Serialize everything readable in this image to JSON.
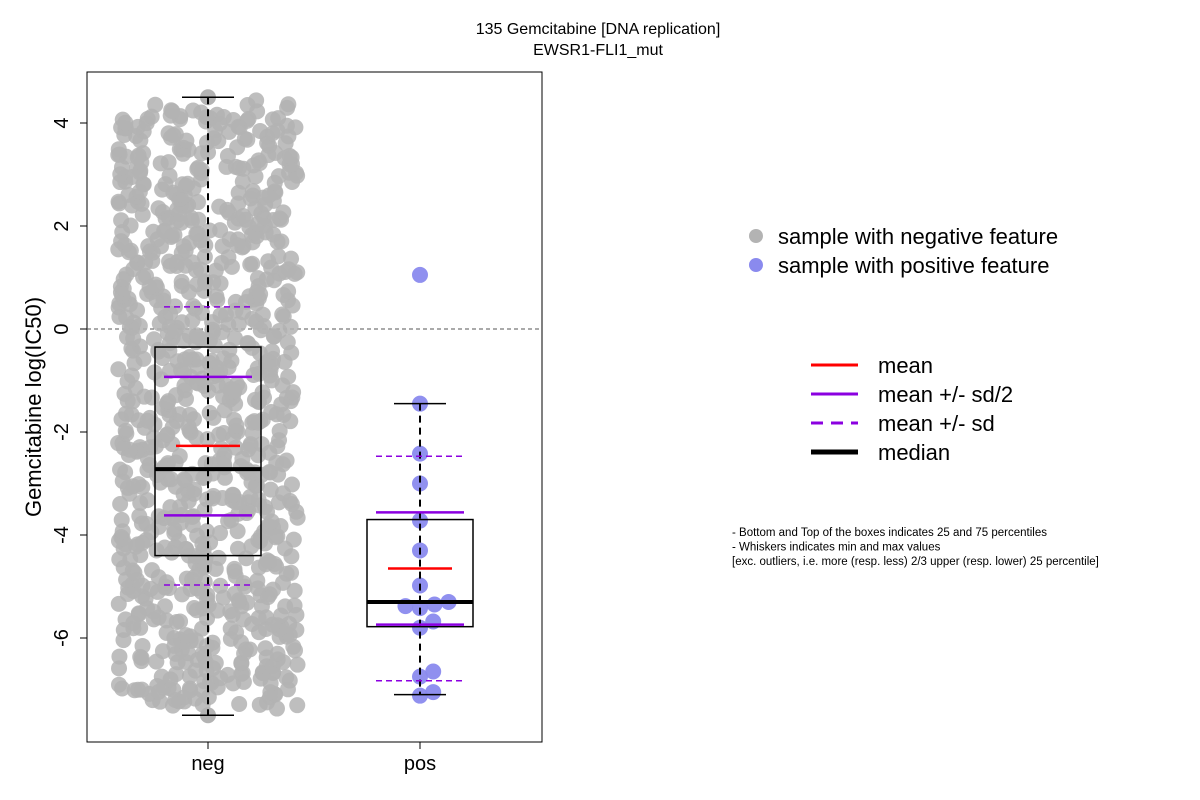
{
  "chart_data": {
    "type": "box+strip",
    "title": "135 Gemcitabine [DNA replication]",
    "subtitle": "EWSR1-FLI1_mut",
    "xlabel": "",
    "ylabel": "Gemcitabine log(IC50)",
    "categories": [
      "neg",
      "pos"
    ],
    "ylim": [
      -8,
      5
    ],
    "yticks": [
      4,
      2,
      0,
      -2,
      -4,
      -6
    ],
    "reference_line": {
      "y": 0,
      "style": "dashed"
    },
    "groups": [
      {
        "name": "neg",
        "color": "#b3b3b3",
        "count_estimate": 900,
        "min": -7.5,
        "q1": -4.4,
        "median": -2.72,
        "q3": -0.35,
        "max": 4.5,
        "mean": -2.27,
        "sd_half_low": -3.62,
        "sd_half_high": -0.93,
        "sd_low": -4.97,
        "sd_high": 0.43
      },
      {
        "name": "pos",
        "color": "#8a8aee",
        "min": -7.1,
        "q1": -5.78,
        "median": -5.3,
        "q3": -3.7,
        "max": -1.45,
        "mean": -4.65,
        "sd_half_low": -5.74,
        "sd_half_high": -3.56,
        "sd_low": -6.83,
        "sd_high": -2.47,
        "points": [
          {
            "x": 0.0,
            "y": 1.05
          },
          {
            "x": 0.0,
            "y": -1.45
          },
          {
            "x": 0.0,
            "y": -2.42
          },
          {
            "x": 0.0,
            "y": -3.0
          },
          {
            "x": 0.0,
            "y": -3.72
          },
          {
            "x": 0.0,
            "y": -4.3
          },
          {
            "x": 0.0,
            "y": -4.98
          },
          {
            "x": -0.33,
            "y": -5.38
          },
          {
            "x": 0.0,
            "y": -5.42
          },
          {
            "x": 0.33,
            "y": -5.35
          },
          {
            "x": 0.65,
            "y": -5.3
          },
          {
            "x": 0.3,
            "y": -5.68
          },
          {
            "x": 0.0,
            "y": -5.8
          },
          {
            "x": 0.3,
            "y": -6.65
          },
          {
            "x": 0.0,
            "y": -6.75
          },
          {
            "x": 0.3,
            "y": -7.05
          },
          {
            "x": 0.0,
            "y": -7.12
          }
        ]
      }
    ],
    "legend_points": [
      {
        "label": "sample with negative feature",
        "color": "#b3b3b3"
      },
      {
        "label": "sample with positive feature",
        "color": "#8a8aee"
      }
    ],
    "legend_lines": [
      {
        "label": "mean",
        "color": "#ff0000",
        "style": "solid"
      },
      {
        "label": "mean +/- sd/2",
        "color": "#8b00e0",
        "style": "solid"
      },
      {
        "label": "mean +/- sd",
        "color": "#8b00e0",
        "style": "dashed"
      },
      {
        "label": "median",
        "color": "#000000",
        "style": "thick"
      }
    ],
    "notes": [
      "- Bottom and Top of the boxes indicates 25 and 75 percentiles",
      "- Whiskers indicates min and max values",
      "[exc. outliers, i.e. more (resp. less) 2/3 upper (resp. lower) 25 percentile]"
    ]
  }
}
